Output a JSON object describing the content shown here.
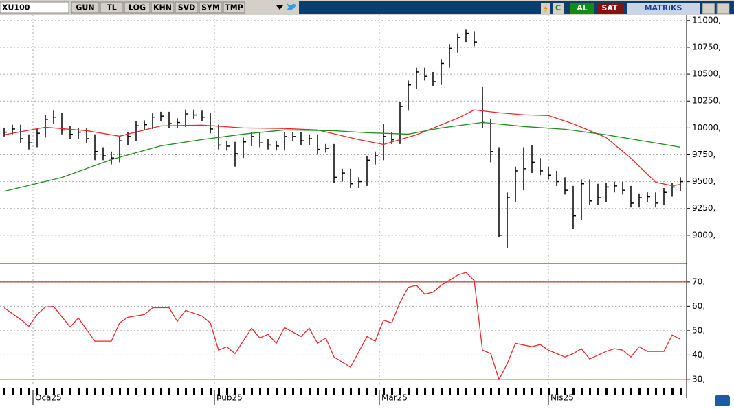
{
  "toolbar": {
    "symbol": "XU100",
    "buttons": [
      "GUN",
      "TL",
      "LOG",
      "KHN",
      "SVD",
      "SYM",
      "TMP"
    ],
    "actions": [
      "C",
      "AL",
      "SAT"
    ],
    "brand": "MATRiKS"
  },
  "chart_data": [
    {
      "type": "ohlc",
      "xlim": [
        -0.5,
        82.5
      ],
      "ylim": [
        8750,
        11050
      ],
      "yticks": [
        {
          "value": 9000,
          "label": "9000,"
        },
        {
          "value": 9250,
          "label": "9250,"
        },
        {
          "value": 9500,
          "label": "9500,"
        },
        {
          "value": 9750,
          "label": "9750,"
        },
        {
          "value": 10000,
          "label": "10000,"
        },
        {
          "value": 10250,
          "label": "10250,"
        },
        {
          "value": 10500,
          "label": "10500,"
        },
        {
          "value": 10750,
          "label": "10750,"
        },
        {
          "value": 11000,
          "label": "11000,"
        }
      ],
      "grid": true,
      "color": "#000000",
      "high": [
        10000,
        10030,
        10030,
        9940,
        9990,
        10120,
        10160,
        10140,
        10020,
        10000,
        10000,
        9940,
        9820,
        9780,
        9920,
        9960,
        10060,
        10070,
        10140,
        10150,
        10150,
        10090,
        10170,
        10170,
        10160,
        10140,
        10030,
        9880,
        9870,
        9910,
        9960,
        9960,
        9900,
        9880,
        9960,
        9960,
        9960,
        9940,
        9940,
        9850,
        9850,
        9620,
        9620,
        9540,
        9740,
        9780,
        10040,
        9960,
        10240,
        10440,
        10560,
        10560,
        10520,
        10640,
        10780,
        10880,
        10920,
        10900,
        10380,
        10080,
        9820,
        9400,
        9640,
        9820,
        9840,
        9720,
        9640,
        9600,
        9540,
        9460,
        9520,
        9520,
        9480,
        9490,
        9500,
        9500,
        9460,
        9390,
        9400,
        9400,
        9440,
        9490,
        9540
      ],
      "low": [
        9920,
        9940,
        9860,
        9800,
        9820,
        9910,
        10040,
        9940,
        9900,
        9900,
        9860,
        9700,
        9700,
        9660,
        9680,
        9840,
        9880,
        9980,
        9990,
        10060,
        10000,
        10000,
        10010,
        10080,
        10060,
        9950,
        9800,
        9790,
        9640,
        9720,
        9830,
        9820,
        9800,
        9790,
        9790,
        9880,
        9840,
        9840,
        9760,
        9770,
        9490,
        9500,
        9440,
        9440,
        9460,
        9660,
        9700,
        9850,
        9850,
        10160,
        10360,
        10440,
        10390,
        10400,
        10560,
        10700,
        10800,
        10760,
        10000,
        9680,
        8980,
        8880,
        9310,
        9420,
        9580,
        9560,
        9520,
        9460,
        9380,
        9060,
        9140,
        9280,
        9280,
        9310,
        9400,
        9380,
        9260,
        9260,
        9310,
        9260,
        9280,
        9360,
        9410
      ],
      "close": [
        9960,
        9990,
        9900,
        9860,
        9950,
        10080,
        10100,
        9980,
        9940,
        9960,
        9900,
        9780,
        9740,
        9720,
        9880,
        9920,
        10020,
        10030,
        10100,
        10110,
        10040,
        10050,
        10130,
        10120,
        10100,
        9990,
        9840,
        9830,
        9760,
        9870,
        9920,
        9860,
        9840,
        9830,
        9920,
        9920,
        9880,
        9900,
        9800,
        9810,
        9540,
        9580,
        9480,
        9500,
        9700,
        9740,
        9920,
        9890,
        10200,
        10400,
        10520,
        10480,
        10430,
        10600,
        10740,
        10840,
        10880,
        10800,
        10050,
        9780,
        9000,
        9350,
        9600,
        9620,
        9680,
        9600,
        9560,
        9500,
        9420,
        9180,
        9480,
        9320,
        9350,
        9450,
        9460,
        9420,
        9300,
        9350,
        9360,
        9300,
        9400,
        9450,
        9500
      ],
      "series": [
        {
          "color": "#e8272a",
          "x": [
            0,
            5,
            10,
            14,
            19,
            24,
            29,
            34,
            38,
            43,
            46,
            50,
            55,
            57,
            60,
            63,
            66,
            69,
            73,
            76,
            79,
            81,
            82
          ],
          "values": [
            9936,
            10006,
            9974,
            9923,
            10019,
            10026,
            10000,
            9994,
            9981,
            9891,
            9846,
            9936,
            10090,
            10167,
            10141,
            10122,
            10115,
            10038,
            9910,
            9718,
            9494,
            9462,
            9474
          ]
        },
        {
          "color": "#1f8a1f",
          "x": [
            0,
            7,
            13,
            19,
            24,
            29,
            34,
            40,
            44,
            49,
            53,
            58,
            63,
            68,
            73,
            78,
            82
          ],
          "values": [
            9410,
            9538,
            9705,
            9833,
            9891,
            9942,
            9981,
            9974,
            9955,
            9942,
            10000,
            10051,
            10013,
            9987,
            9936,
            9872,
            9821
          ]
        }
      ]
    },
    {
      "type": "line",
      "xlim": [
        -0.5,
        82.5
      ],
      "ylim": [
        28,
        77
      ],
      "yticks": [
        {
          "value": 30,
          "label": "30,"
        },
        {
          "value": 40,
          "label": "40,"
        },
        {
          "value": 50,
          "label": "50,"
        },
        {
          "value": 60,
          "label": "60,"
        },
        {
          "value": 70,
          "label": "70,"
        }
      ],
      "grid": true,
      "levels": [
        {
          "value": 70,
          "color": "#a31515"
        },
        {
          "value": 30,
          "color": "#1f9a1f"
        }
      ],
      "xticks": [
        {
          "value": 3.5,
          "label": "Oca25"
        },
        {
          "value": 25.5,
          "label": "Þub25"
        },
        {
          "value": 45.5,
          "label": "Mar25"
        },
        {
          "value": 66,
          "label": "Nis25"
        }
      ],
      "series": [
        {
          "color": "#e8272a",
          "x": [
            0,
            2,
            3,
            4,
            5,
            6,
            8,
            9,
            11,
            13,
            14,
            15,
            17,
            18,
            20,
            21,
            22,
            24,
            25,
            26,
            27,
            28,
            30,
            31,
            32,
            33,
            34,
            36,
            37,
            38,
            39,
            40,
            42,
            44,
            45,
            46,
            47,
            48,
            49,
            50,
            51,
            52,
            53,
            55,
            56,
            57,
            58,
            59,
            60,
            61,
            62,
            64,
            65,
            66,
            68,
            69,
            70,
            71,
            73,
            74,
            75,
            76,
            77,
            78,
            80,
            81,
            82
          ],
          "values": [
            59.4,
            54.6,
            51.8,
            56.6,
            59.7,
            59.9,
            51.5,
            55.2,
            45.7,
            45.7,
            53.2,
            55.5,
            56.6,
            59.4,
            59.4,
            53.8,
            58.3,
            56,
            53.2,
            42,
            43.4,
            40.6,
            51,
            47,
            48.5,
            44.8,
            51.3,
            47.6,
            51,
            44.8,
            47,
            39.2,
            35,
            47.6,
            45.7,
            54.3,
            53.2,
            61.6,
            67.8,
            68.6,
            65,
            65.8,
            68.6,
            72.8,
            73.9,
            70.6,
            42,
            40.6,
            30,
            36.4,
            44.8,
            43.4,
            44.3,
            42,
            39.2,
            40.6,
            42.6,
            38.4,
            41.5,
            42.6,
            42,
            39.2,
            43.4,
            41.5,
            41.5,
            48.2,
            46.5
          ]
        }
      ]
    }
  ]
}
